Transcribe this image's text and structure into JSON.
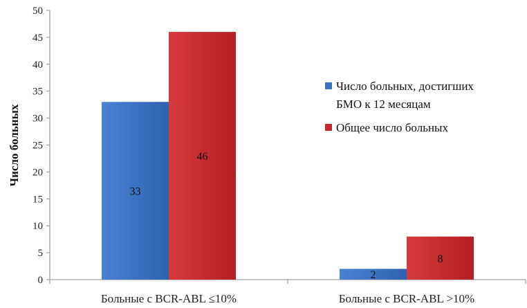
{
  "chart_data": {
    "type": "bar",
    "categories": [
      "Больные с BCR-ABL ≤10%",
      "Больные с BCR-ABL >10%"
    ],
    "series": [
      {
        "name": "Число больных, достигших БМО к 12 месяцам",
        "values": [
          33,
          2
        ],
        "color": "#3c71c2"
      },
      {
        "name": "Общее число больных",
        "values": [
          46,
          8
        ],
        "color": "#c4282d"
      }
    ],
    "legend_lines": [
      [
        "Число больных, достигших",
        "БМО к 12 месяцам"
      ],
      [
        "Общее число больных"
      ]
    ],
    "title": "",
    "xlabel": "",
    "ylabel": "Число больных",
    "ylim": [
      0,
      50
    ],
    "yticks": [
      0,
      5,
      10,
      15,
      20,
      25,
      30,
      35,
      40,
      45,
      50
    ],
    "grid": false,
    "legend_position": "right",
    "data_labels": true
  }
}
